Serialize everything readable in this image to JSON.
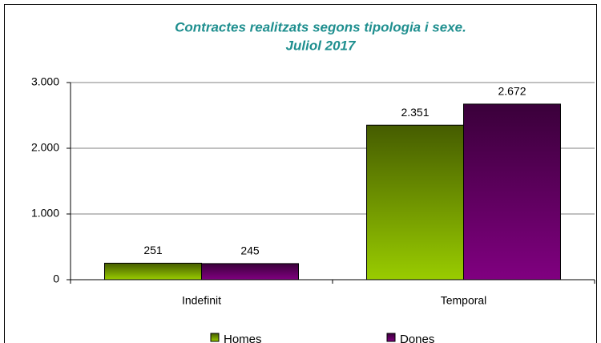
{
  "chart_data": {
    "type": "bar",
    "title": "Contractes realitzats segons tipologia i sexe.",
    "subtitle": "Juliol 2017",
    "categories": [
      "Indefinit",
      "Temporal"
    ],
    "series": [
      {
        "name": "Homes",
        "color": "#99cc00",
        "values": [
          251,
          2351
        ],
        "value_labels": [
          "251",
          "2.351"
        ]
      },
      {
        "name": "Dones",
        "color": "#800080",
        "values": [
          245,
          2672
        ],
        "value_labels": [
          "245",
          "2.672"
        ]
      }
    ],
    "ylim": [
      0,
      3000
    ],
    "yticks": [
      0,
      {
        "value": 1000,
        "label": "1.000"
      },
      {
        "value": 2000,
        "label": "2.000"
      },
      {
        "value": 3000,
        "label": "3.000"
      }
    ],
    "grid": true,
    "legend": "bottom"
  }
}
